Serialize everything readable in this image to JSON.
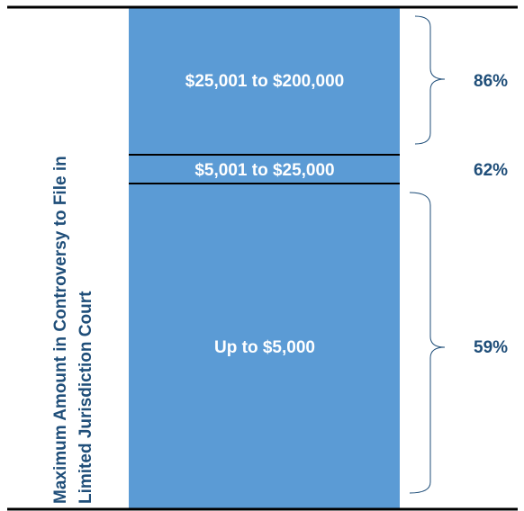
{
  "chart_data": {
    "type": "bar",
    "title": "",
    "ylabel": "Maximum Amount in Controversy to File in Limited Jurisdiction Court",
    "ylabel_lines": [
      "Maximum Amount in Controversy to File in",
      "Limited Jurisdiction Court"
    ],
    "categories": [
      "Up to $5,000",
      "$5,001 to $25,000",
      "$25,001 to $200,000"
    ],
    "percentages": [
      "59%",
      "62%",
      "86%"
    ],
    "values": [
      59,
      62,
      86
    ],
    "colors": {
      "bar_fill": "#5b9bd5",
      "bar_text": "#ffffff",
      "axis_text": "#1f4e79",
      "percent_text": "#1f4e79",
      "brace": "#1f4e79",
      "lines": "#000000"
    }
  }
}
